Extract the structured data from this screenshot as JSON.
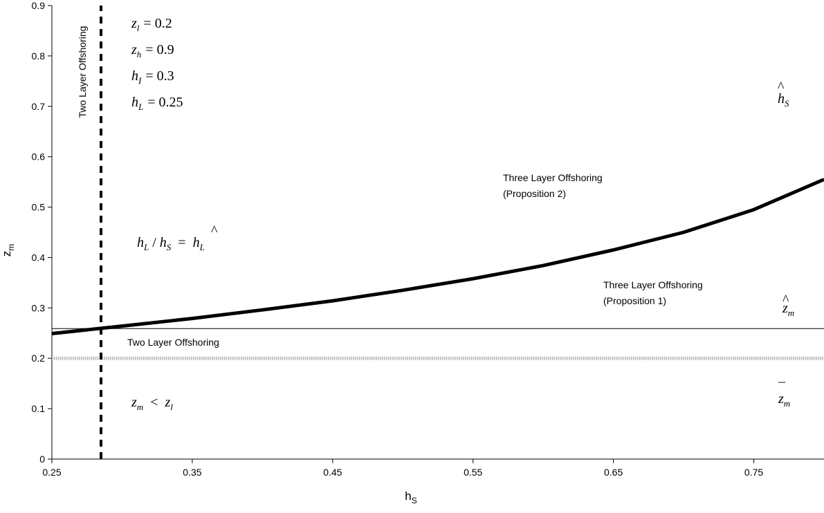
{
  "chart_data": {
    "type": "line",
    "xlabel": "hS",
    "ylabel": "zm",
    "xlim": [
      0.25,
      0.8
    ],
    "ylim": [
      0,
      0.9
    ],
    "x_ticks": [
      "0.25",
      "0.35",
      "0.45",
      "0.55",
      "0.65",
      "0.75"
    ],
    "y_ticks": [
      "0",
      "0.1",
      "0.2",
      "0.3",
      "0.4",
      "0.5",
      "0.6",
      "0.7",
      "0.8",
      "0.9"
    ],
    "grid": false,
    "legend": "none",
    "series": [
      {
        "style": "thick solid black curve",
        "x": [
          0.25,
          0.3,
          0.35,
          0.4,
          0.45,
          0.5,
          0.55,
          0.6,
          0.65,
          0.7,
          0.75,
          0.8
        ],
        "y": [
          0.249,
          0.264,
          0.279,
          0.296,
          0.314,
          0.335,
          0.358,
          0.384,
          0.415,
          0.45,
          0.495,
          0.555
        ]
      },
      {
        "style": "thin solid horizontal line",
        "x": [
          0.25,
          0.8
        ],
        "y": [
          0.259,
          0.259
        ]
      },
      {
        "style": "thick dotted grey horizontal line",
        "x": [
          0.25,
          0.8
        ],
        "y": [
          0.2,
          0.2
        ]
      },
      {
        "style": "thick dashed vertical line",
        "x": [
          0.285,
          0.285
        ],
        "y": [
          0,
          0.9
        ]
      }
    ],
    "annotations": {
      "vertical_region": "Two Layer Offshoring",
      "params": [
        {
          "var": "z",
          "sub": "l",
          "value": "= 0.2"
        },
        {
          "var": "z",
          "sub": "h",
          "value": "= 0.9"
        },
        {
          "var": "h",
          "sub": "I",
          "value": "= 0.3"
        },
        {
          "var": "h",
          "sub": "L",
          "value": "= 0.25"
        }
      ],
      "three_layer_p2": [
        "Three Layer Offshoring",
        "(Proposition 2)"
      ],
      "three_layer_p1": [
        "Three Layer Offshoring",
        "(Proposition 1)"
      ],
      "two_layer": "Two Layer Offshoring",
      "ratio_label": {
        "lhs_var": "h",
        "lhs_sub": "L",
        "slash": "/",
        "mid_var": "h",
        "mid_sub": "S",
        "eq": "=",
        "rhs_var": "h",
        "rhs_sub": "L",
        "rhs_accent": "^"
      },
      "zm_lt_zl": {
        "lhs_var": "z",
        "lhs_sub": "m",
        "op": "<",
        "rhs_var": "z",
        "rhs_sub": "l"
      },
      "hhat_s": {
        "var": "h",
        "sub": "S",
        "accent": "^"
      },
      "zhat_m": {
        "var": "z",
        "sub": "m",
        "accent": "^"
      },
      "zbar_m": {
        "var": "z",
        "sub": "m",
        "accent": "¯"
      }
    }
  }
}
